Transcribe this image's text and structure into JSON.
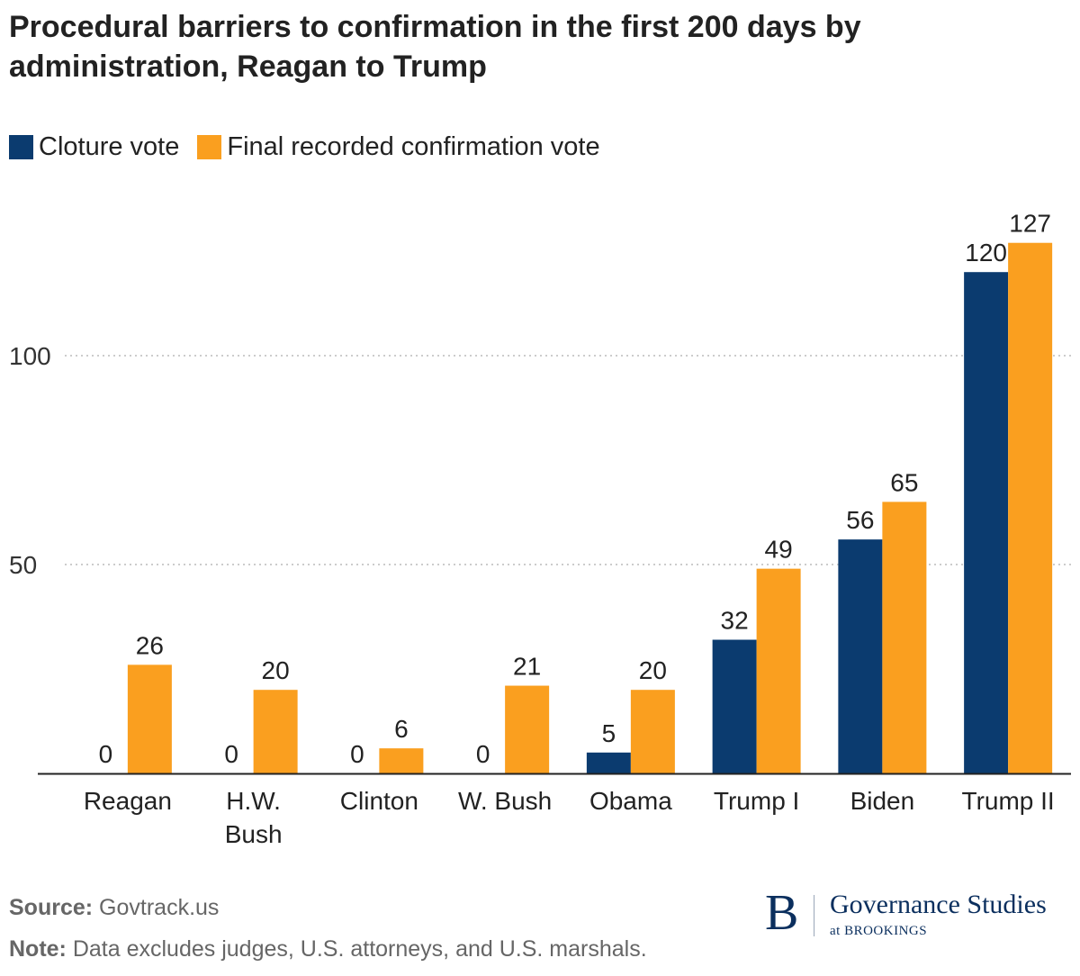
{
  "chart_data": {
    "type": "bar",
    "title": "Procedural barriers to confirmation in the first 200 days by administration, Reagan to Trump",
    "xlabel": "",
    "ylabel": "",
    "ylim": [
      0,
      130
    ],
    "yticks": [
      50,
      100
    ],
    "grid": true,
    "legend_position": "top-left",
    "categories": [
      [
        "Reagan"
      ],
      [
        "H.W.",
        "Bush"
      ],
      [
        "Clinton"
      ],
      [
        "W. Bush"
      ],
      [
        "Obama"
      ],
      [
        "Trump I"
      ],
      [
        "Biden"
      ],
      [
        "Trump II"
      ]
    ],
    "series": [
      {
        "name": "Cloture vote",
        "color": "#0b3b6f",
        "values": [
          0,
          0,
          0,
          0,
          5,
          32,
          56,
          120
        ]
      },
      {
        "name": "Final recorded confirmation vote",
        "color": "#fa9f1f",
        "values": [
          26,
          20,
          6,
          21,
          20,
          49,
          65,
          127
        ]
      }
    ]
  },
  "footer": {
    "source_label": "Source:",
    "source_text": "Govtrack.us",
    "note_label": "Note:",
    "note_text": "Data excludes judges, U.S. attorneys, and U.S. marshals."
  },
  "logo": {
    "mark": "B",
    "name": "Governance Studies",
    "sub": "at BROOKINGS",
    "color": "#0b2f5e"
  }
}
